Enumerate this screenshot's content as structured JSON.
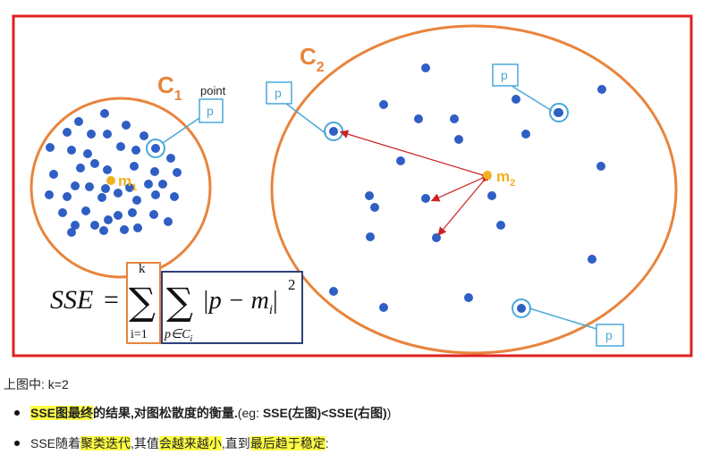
{
  "diagram": {
    "c1_label": "C",
    "c1_sub": "1",
    "c2_label": "C",
    "c2_sub": "2",
    "point_word": "point",
    "p": "p",
    "m1": "m",
    "m1_sub": "1",
    "m2": "m",
    "m2_sub": "2",
    "formula": {
      "lhs": "SSE",
      "eq": "=",
      "sum": "∑",
      "k": "k",
      "i1": "i=1",
      "pin": "p∈C",
      "pin_sub": "i",
      "abs": "|p − m",
      "abs_sub": "i",
      "abs_close": "|",
      "sq": "2"
    },
    "colors": {
      "frame": "#e02020",
      "circle": "#e8843c",
      "point": "#2f5fc4",
      "centroid": "#f0b020",
      "callout": "#4aa8d8",
      "arrow": "#cc2222",
      "box": "#2d3f7a"
    }
  },
  "caption": "上图中: k=2",
  "bullets": [
    {
      "parts": [
        {
          "t": "SSE图最终",
          "hl": true,
          "b": true
        },
        {
          "t": "的结果,对图松散度的衡量.",
          "hl": false,
          "b": true
        },
        {
          "t": "(eg: ",
          "hl": false,
          "b": false
        },
        {
          "t": "SSE(左图)<SSE(右图)",
          "hl": false,
          "b": true
        },
        {
          "t": ")",
          "hl": false,
          "b": false
        }
      ]
    },
    {
      "parts": [
        {
          "t": "SSE随着",
          "hl": false,
          "b": false
        },
        {
          "t": "聚类迭代",
          "hl": true,
          "b": false
        },
        {
          "t": ",其值",
          "hl": false,
          "b": false
        },
        {
          "t": "会越来越小",
          "hl": true,
          "b": false
        },
        {
          "t": ",直到",
          "hl": false,
          "b": false
        },
        {
          "t": "最后趋于稳定",
          "hl": true,
          "b": false
        },
        {
          "t": ":",
          "hl": false,
          "b": false
        }
      ]
    }
  ]
}
